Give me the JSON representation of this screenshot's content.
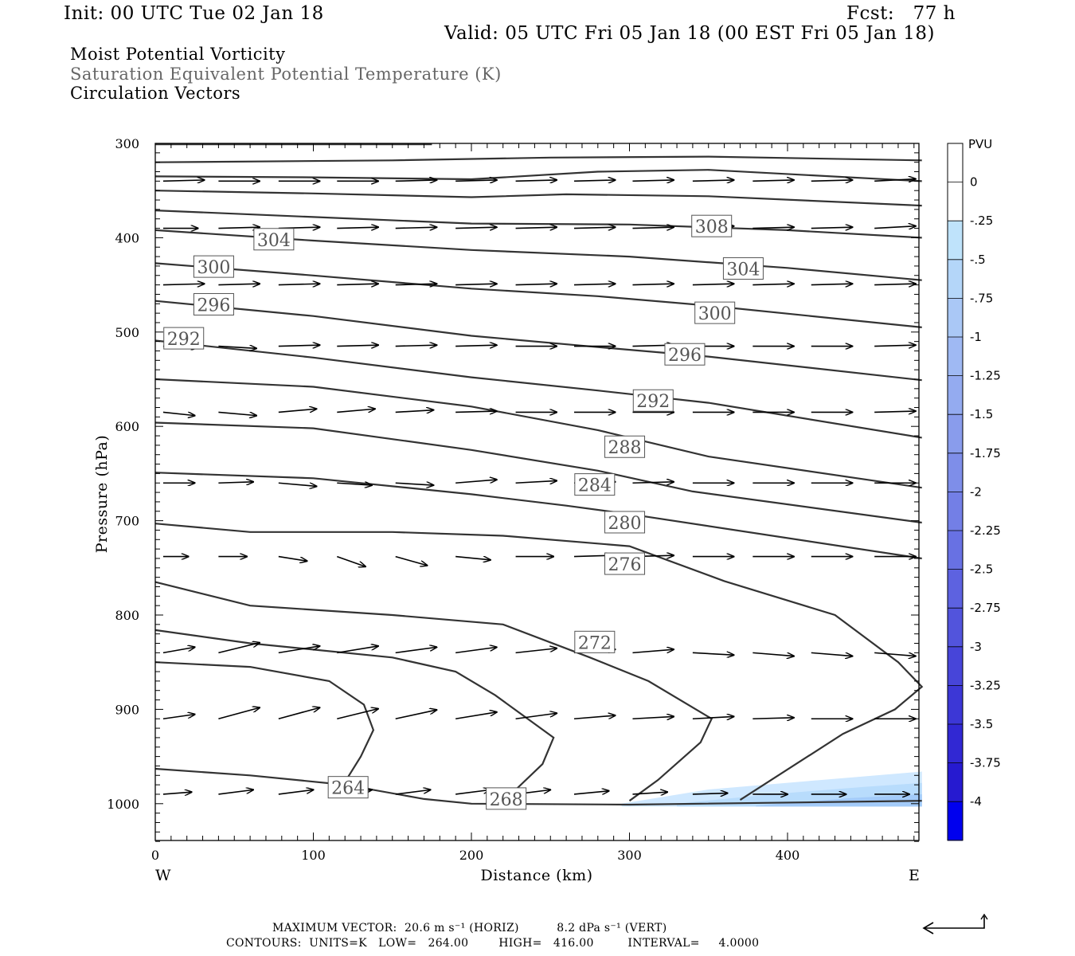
{
  "header": {
    "init": "Init: 00 UTC Tue 02 Jan 18",
    "fcst": "Fcst:   77 h",
    "valid": "Valid: 05 UTC Fri 05 Jan 18 (00 EST Fri 05 Jan 18)",
    "field1": "Moist Potential Vorticity",
    "field2": "Saturation Equivalent Potential Temperature (K)",
    "field3": "Circulation Vectors"
  },
  "footer": {
    "max_vector": "MAXIMUM VECTOR:  20.6 m s⁻¹ (HORIZ)          8.2 dPa s⁻¹ (VERT)",
    "contours": "CONTOURS:  UNITS=K   LOW=   264.00        HIGH=   416.00         INTERVAL=     4.0000"
  },
  "colors": {
    "contour": "#333333",
    "mpv_light": "#cfe8ff",
    "mpv_mid": "#a9d6fb",
    "mpv_dark": "#93bdf5"
  },
  "chart_data": {
    "type": "cross-section",
    "xlabel": "Distance (km)",
    "ylabel": "Pressure (hPa)",
    "xlim": [
      0,
      485
    ],
    "ylim": [
      1040,
      300
    ],
    "x_ticks": [
      "0",
      "100",
      "200",
      "300",
      "400"
    ],
    "y_ticks": [
      "300",
      "400",
      "500",
      "600",
      "700",
      "800",
      "900",
      "1000"
    ],
    "x_end_labels": {
      "west": "W",
      "east": "E"
    },
    "colorbar": {
      "title": "PVU",
      "labels": [
        "0",
        "-.25",
        "-.5",
        "-.75",
        "-1",
        "-1.25",
        "-1.5",
        "-1.75",
        "-2",
        "-2.25",
        "-2.5",
        "-2.75",
        "-3",
        "-3.25",
        "-3.5",
        "-3.75",
        "-4"
      ],
      "colors": [
        "#ffffff",
        "#ffffff",
        "#bfe3fb",
        "#b4d6f9",
        "#aac8f6",
        "#9fb9f3",
        "#94abf0",
        "#899cec",
        "#7e8ee9",
        "#737fe6",
        "#6871e3",
        "#5d62e0",
        "#5254dc",
        "#4745d9",
        "#3c37d6",
        "#3128d3",
        "#261ad0",
        "#0000ee"
      ]
    },
    "contour_labels": [
      {
        "text": "308",
        "x": 352,
        "p": 388
      },
      {
        "text": "304",
        "x": 75,
        "p": 402
      },
      {
        "text": "304",
        "x": 372,
        "p": 433
      },
      {
        "text": "300",
        "x": 37,
        "p": 431
      },
      {
        "text": "300",
        "x": 354,
        "p": 480
      },
      {
        "text": "296",
        "x": 37,
        "p": 471
      },
      {
        "text": "296",
        "x": 335,
        "p": 524
      },
      {
        "text": "292",
        "x": 18,
        "p": 507
      },
      {
        "text": "292",
        "x": 315,
        "p": 573
      },
      {
        "text": "288",
        "x": 297,
        "p": 622
      },
      {
        "text": "284",
        "x": 278,
        "p": 662
      },
      {
        "text": "280",
        "x": 297,
        "p": 702
      },
      {
        "text": "276",
        "x": 297,
        "p": 746
      },
      {
        "text": "272",
        "x": 278,
        "p": 829
      },
      {
        "text": "264",
        "x": 122,
        "p": 983
      },
      {
        "text": "268",
        "x": 222,
        "p": 995
      }
    ],
    "contours": [
      [
        [
          0,
          301
        ],
        [
          175,
          301
        ]
      ],
      [
        [
          0,
          320
        ],
        [
          150,
          318
        ],
        [
          250,
          315
        ],
        [
          350,
          314
        ],
        [
          485,
          318
        ]
      ],
      [
        [
          0,
          335
        ],
        [
          100,
          336
        ],
        [
          200,
          338
        ],
        [
          280,
          330
        ],
        [
          350,
          328
        ],
        [
          485,
          340
        ]
      ],
      [
        [
          0,
          350
        ],
        [
          100,
          353
        ],
        [
          200,
          357
        ],
        [
          260,
          354
        ],
        [
          350,
          356
        ],
        [
          485,
          366
        ]
      ],
      [
        [
          0,
          371
        ],
        [
          100,
          378
        ],
        [
          200,
          385
        ],
        [
          300,
          386
        ],
        [
          400,
          392
        ],
        [
          485,
          400
        ]
      ],
      [
        [
          0,
          392
        ],
        [
          100,
          403
        ],
        [
          200,
          413
        ],
        [
          300,
          420
        ],
        [
          400,
          432
        ],
        [
          485,
          445
        ]
      ],
      [
        [
          0,
          427
        ],
        [
          100,
          440
        ],
        [
          200,
          454
        ],
        [
          280,
          462
        ],
        [
          350,
          472
        ],
        [
          485,
          495
        ]
      ],
      [
        [
          0,
          467
        ],
        [
          100,
          483
        ],
        [
          200,
          504
        ],
        [
          280,
          516
        ],
        [
          350,
          526
        ],
        [
          485,
          551
        ]
      ],
      [
        [
          0,
          509
        ],
        [
          100,
          527
        ],
        [
          200,
          548
        ],
        [
          280,
          562
        ],
        [
          350,
          575
        ],
        [
          485,
          612
        ]
      ],
      [
        [
          0,
          550
        ],
        [
          100,
          558
        ],
        [
          200,
          579
        ],
        [
          280,
          604
        ],
        [
          350,
          632
        ],
        [
          485,
          665
        ]
      ],
      [
        [
          0,
          596
        ],
        [
          100,
          602
        ],
        [
          200,
          625
        ],
        [
          280,
          647
        ],
        [
          340,
          669
        ],
        [
          485,
          702
        ]
      ],
      [
        [
          0,
          649
        ],
        [
          100,
          655
        ],
        [
          200,
          672
        ],
        [
          260,
          684
        ],
        [
          300,
          693
        ],
        [
          485,
          740
        ]
      ],
      [
        [
          0,
          703
        ],
        [
          60,
          712
        ],
        [
          150,
          712
        ],
        [
          220,
          716
        ],
        [
          300,
          727
        ],
        [
          360,
          764
        ],
        [
          430,
          800
        ],
        [
          470,
          850
        ],
        [
          485,
          876
        ],
        [
          468,
          900
        ],
        [
          435,
          926
        ],
        [
          370,
          996
        ]
      ],
      [
        [
          0,
          765
        ],
        [
          60,
          790
        ],
        [
          150,
          800
        ],
        [
          220,
          810
        ],
        [
          275,
          845
        ],
        [
          312,
          870
        ],
        [
          352,
          910
        ],
        [
          345,
          935
        ],
        [
          318,
          975
        ],
        [
          300,
          997
        ]
      ],
      [
        [
          0,
          816
        ],
        [
          60,
          830
        ],
        [
          150,
          845
        ],
        [
          190,
          860
        ],
        [
          215,
          885
        ],
        [
          252,
          930
        ],
        [
          245,
          958
        ],
        [
          225,
          990
        ]
      ],
      [
        [
          0,
          850
        ],
        [
          60,
          855
        ],
        [
          110,
          870
        ],
        [
          132,
          895
        ],
        [
          138,
          922
        ],
        [
          130,
          950
        ],
        [
          120,
          977
        ]
      ],
      [
        [
          0,
          963
        ],
        [
          60,
          970
        ],
        [
          120,
          980
        ],
        [
          170,
          995
        ],
        [
          200,
          1000
        ],
        [
          300,
          1001
        ],
        [
          485,
          997
        ]
      ]
    ],
    "vectors": {
      "rows": [
        {
          "p": 340,
          "u": [
            26,
            26,
            26,
            26,
            26,
            26,
            26,
            26,
            26,
            26,
            26,
            26,
            26
          ],
          "w": [
            -1,
            0,
            0,
            0,
            -1,
            -1,
            -1,
            -1,
            -1,
            -1,
            -1,
            -1,
            -2
          ]
        },
        {
          "p": 390,
          "u": [
            22,
            26,
            26,
            26,
            26,
            26,
            26,
            26,
            26,
            26,
            26,
            26,
            26
          ],
          "w": [
            0,
            -1,
            -1,
            -1,
            -1,
            -1,
            -1,
            -1,
            -1,
            -2,
            -1,
            -1,
            -2
          ]
        },
        {
          "p": 450,
          "u": [
            26,
            26,
            26,
            26,
            26,
            26,
            26,
            26,
            26,
            26,
            26,
            26,
            26
          ],
          "w": [
            -1,
            -1,
            -1,
            -1,
            -1,
            -1,
            -1,
            -1,
            -1,
            -1,
            -1,
            -1,
            -1
          ]
        },
        {
          "p": 515,
          "u": [
            22,
            24,
            26,
            26,
            26,
            26,
            26,
            26,
            26,
            26,
            26,
            26,
            26
          ],
          "w": [
            1,
            2,
            -1,
            -1,
            -1,
            -1,
            0,
            0,
            -1,
            0,
            0,
            0,
            -1
          ]
        },
        {
          "p": 585,
          "u": [
            20,
            24,
            24,
            24,
            24,
            26,
            26,
            26,
            26,
            26,
            26,
            26,
            26
          ],
          "w": [
            3,
            3,
            -3,
            -3,
            -2,
            -1,
            0,
            0,
            0,
            0,
            0,
            0,
            -1
          ]
        },
        {
          "p": 660,
          "u": [
            20,
            22,
            24,
            22,
            24,
            26,
            26,
            26,
            26,
            26,
            26,
            26,
            26
          ],
          "w": [
            0,
            -1,
            3,
            2,
            2,
            -3,
            -2,
            -1,
            -1,
            0,
            0,
            0,
            0
          ]
        },
        {
          "p": 738,
          "u": [
            16,
            18,
            18,
            18,
            20,
            22,
            24,
            24,
            26,
            26,
            26,
            26,
            26
          ],
          "w": [
            0,
            0,
            4,
            9,
            8,
            3,
            0,
            -1,
            -1,
            0,
            0,
            0,
            0
          ]
        },
        {
          "p": 840,
          "u": [
            20,
            26,
            26,
            26,
            26,
            26,
            26,
            26,
            26,
            26,
            26,
            26,
            26
          ],
          "w": [
            -5,
            -9,
            -6,
            -6,
            -5,
            -5,
            -4,
            -3,
            -3,
            2,
            3,
            3,
            3
          ]
        },
        {
          "p": 910,
          "u": [
            20,
            26,
            26,
            26,
            26,
            26,
            26,
            26,
            26,
            26,
            26,
            26,
            26
          ],
          "w": [
            -4,
            -10,
            -10,
            -9,
            -8,
            -6,
            -5,
            -3,
            -2,
            -2,
            -1,
            0,
            0
          ]
        },
        {
          "p": 990,
          "u": [
            18,
            22,
            22,
            22,
            22,
            22,
            22,
            22,
            22,
            22,
            22,
            22,
            22
          ],
          "w": [
            -2,
            -4,
            -4,
            -4,
            -4,
            -4,
            -4,
            -3,
            -2,
            -1,
            0,
            0,
            0
          ]
        }
      ],
      "x_positions": [
        5,
        40,
        78,
        115,
        152,
        190,
        228,
        265,
        302,
        340,
        378,
        415,
        455
      ]
    },
    "mpv_shading": [
      {
        "level": "-.5",
        "color": "#cfe8ff",
        "top": [
          [
            295,
            1000
          ],
          [
            350,
            985
          ],
          [
            420,
            975
          ],
          [
            485,
            966
          ]
        ]
      },
      {
        "level": "-.75",
        "color": "#b8dcfc",
        "top": [
          [
            330,
            1000
          ],
          [
            390,
            990
          ],
          [
            450,
            982
          ],
          [
            485,
            978
          ]
        ]
      },
      {
        "level": "-1",
        "color": "#a3cbf9",
        "top": [
          [
            380,
            1002
          ],
          [
            440,
            994
          ],
          [
            485,
            990
          ]
        ]
      }
    ]
  }
}
